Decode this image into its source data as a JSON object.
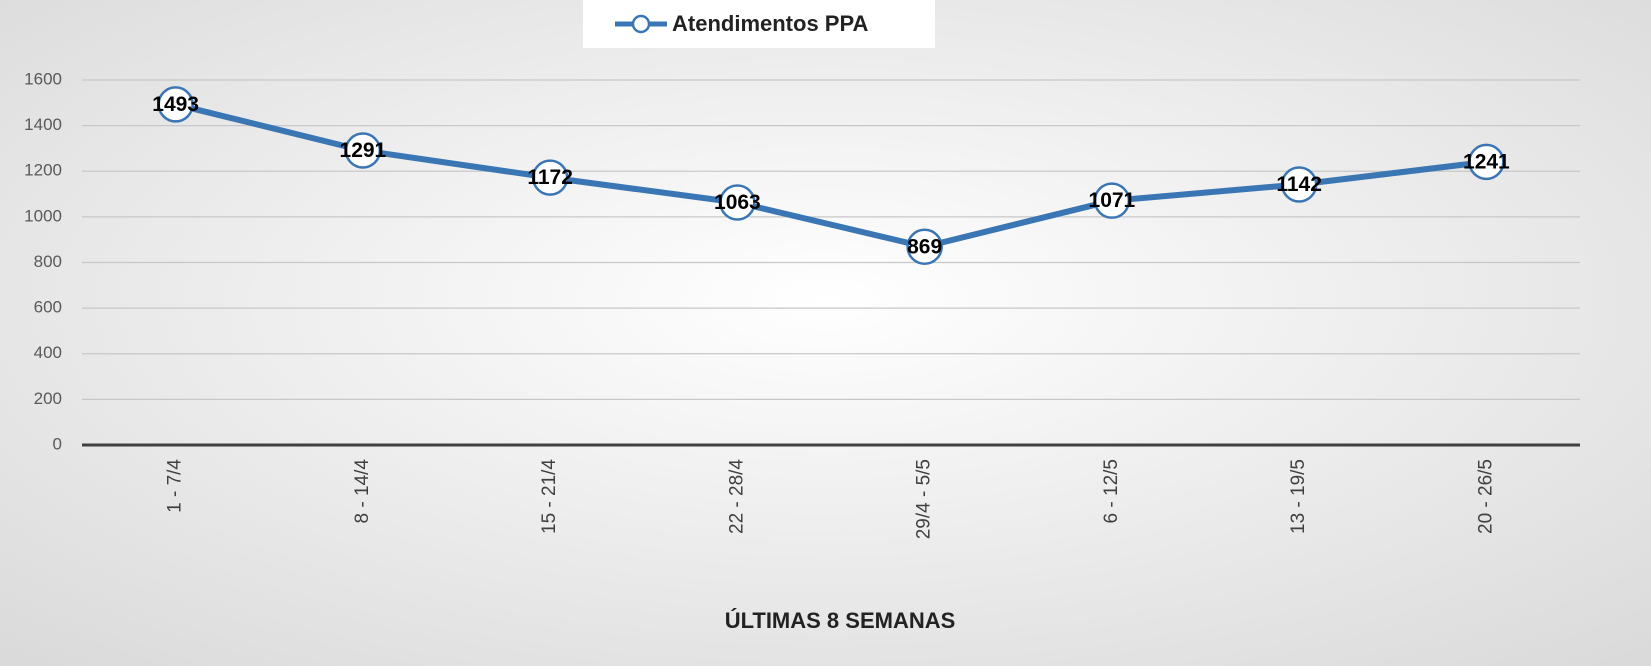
{
  "chart_data": {
    "type": "line",
    "categories": [
      "1 - 7/4",
      "8 - 14/4",
      "15 - 21/4",
      "22 - 28/4",
      "29/4 - 5/5",
      "6 - 12/5",
      "13 - 19/5",
      "20 - 26/5"
    ],
    "series": [
      {
        "name": "Atendimentos PPA",
        "color": "#3a75b4",
        "values": [
          1493,
          1291,
          1172,
          1063,
          869,
          1071,
          1142,
          1241
        ]
      }
    ],
    "xlabel": "ÚLTIMAS 8 SEMANAS",
    "ylim": [
      0,
      1600
    ],
    "yticks": [
      0,
      200,
      400,
      600,
      800,
      1000,
      1200,
      1400,
      1600
    ],
    "grid": true,
    "legend": "top"
  }
}
